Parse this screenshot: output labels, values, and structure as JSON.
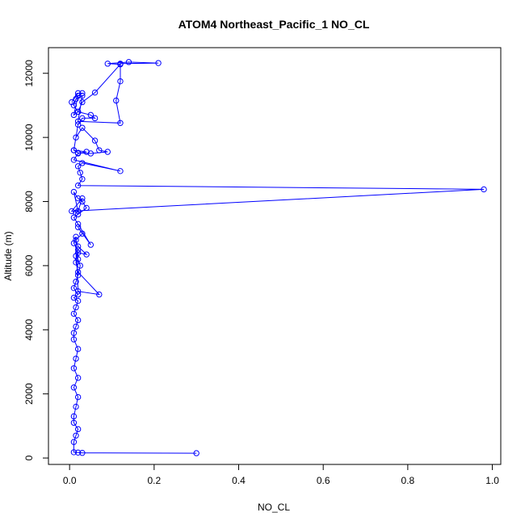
{
  "chart_data": {
    "type": "line",
    "title": "ATOM4 Northeast_Pacific_1 NO_CL",
    "xlabel": "NO_CL",
    "ylabel": "Altitude (m)",
    "xlim": [
      -0.05,
      1.02
    ],
    "ylim": [
      -200,
      12800
    ],
    "x_ticks": [
      0.0,
      0.2,
      0.4,
      0.6,
      0.8,
      1.0
    ],
    "x_tick_labels": [
      "0.0",
      "0.2",
      "0.4",
      "0.6",
      "0.8",
      "1.0"
    ],
    "y_ticks": [
      0,
      2000,
      4000,
      6000,
      8000,
      10000,
      12000
    ],
    "y_tick_labels": [
      "0",
      "2000",
      "4000",
      "6000",
      "8000",
      "10000",
      "12000"
    ],
    "grid": false,
    "legend": "none",
    "series": [
      {
        "color": "#0000ff",
        "marker": "open-circle",
        "x": [
          0.3,
          0.03,
          0.02,
          0.01,
          0.01,
          0.015,
          0.02,
          0.01,
          0.01,
          0.015,
          0.02,
          0.01,
          0.02,
          0.01,
          0.015,
          0.02,
          0.01,
          0.01,
          0.015,
          0.02,
          0.01,
          0.015,
          0.02,
          0.01,
          0.02,
          0.01,
          0.015,
          0.02,
          0.025,
          0.02,
          0.015,
          0.02,
          0.01,
          0.015,
          0.02,
          0.07,
          0.02,
          0.015,
          0.02,
          0.04,
          0.02,
          0.015,
          0.03,
          0.02,
          0.05,
          0.02,
          0.01,
          0.02,
          0.04,
          0.03,
          0.02,
          0.01,
          0.02,
          0.015,
          0.02,
          0.03,
          0.005,
          0.98,
          0.02,
          0.03,
          0.025,
          0.02,
          0.03,
          0.12,
          0.01,
          0.02,
          0.04,
          0.01,
          0.015,
          0.03,
          0.06,
          0.07,
          0.09,
          0.05,
          0.02,
          0.01,
          0.02,
          0.03,
          0.06,
          0.05,
          0.02,
          0.01,
          0.015,
          0.03,
          0.02,
          0.12,
          0.11,
          0.12,
          0.12,
          0.21,
          0.14,
          0.09,
          0.12,
          0.06,
          0.03,
          0.02,
          0.01,
          0.02,
          0.03,
          0.02,
          0.005
        ],
        "y": [
          150,
          160,
          170,
          180,
          500,
          700,
          900,
          1100,
          1300,
          1600,
          1900,
          2200,
          2500,
          2800,
          3100,
          3400,
          3700,
          3900,
          4100,
          4300,
          4500,
          4700,
          4900,
          5000,
          5100,
          5300,
          5500,
          5700,
          6000,
          6200,
          6300,
          6500,
          6700,
          6900,
          5200,
          5100,
          5800,
          6100,
          6400,
          6350,
          6600,
          6800,
          7000,
          7200,
          6650,
          7300,
          7500,
          7600,
          7800,
          8000,
          8100,
          8300,
          7700,
          7650,
          7700,
          8100,
          7700,
          8380,
          8500,
          8700,
          8900,
          9100,
          9200,
          8950,
          9300,
          9500,
          9550,
          9600,
          10000,
          10300,
          9900,
          9600,
          9550,
          9500,
          9520,
          9600,
          10400,
          10600,
          10600,
          10700,
          10800,
          11000,
          11200,
          11300,
          10500,
          10450,
          11150,
          11750,
          12300,
          12320,
          12350,
          12300,
          12280,
          11400,
          11100,
          10800,
          10700,
          11300,
          11380,
          11380,
          11100
        ]
      }
    ]
  }
}
